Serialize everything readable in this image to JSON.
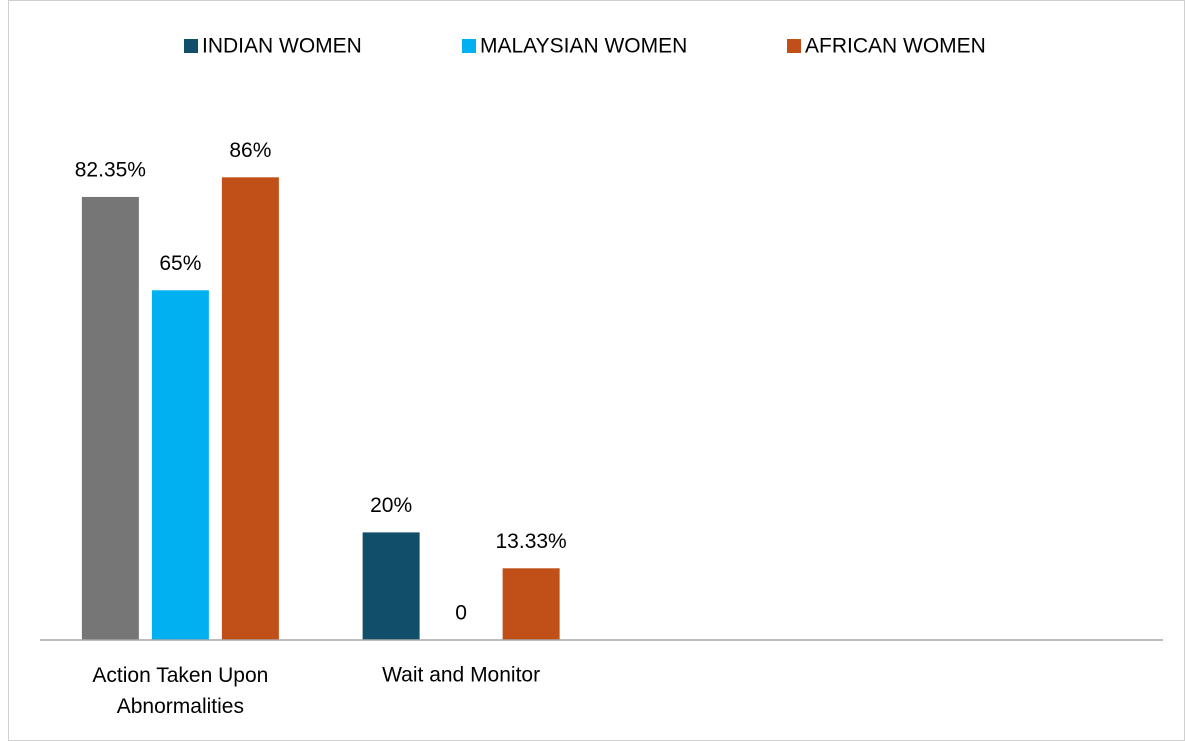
{
  "chart_data": {
    "type": "bar",
    "categories": [
      "Action Taken Upon Abnormalities",
      "Wait and Monitor",
      null,
      null
    ],
    "series": [
      {
        "name": "INDIAN WOMEN",
        "color": "#104e6a",
        "point_colors": [
          "#767676",
          "#104e6a",
          null,
          null
        ],
        "values": [
          82.35,
          20,
          null,
          null
        ],
        "value_labels": [
          "82.35%",
          "20%",
          null,
          null
        ]
      },
      {
        "name": "MALAYSIAN WOMEN",
        "color": "#00b0f0",
        "values": [
          65,
          0,
          null,
          null
        ],
        "value_labels": [
          "65%",
          "0",
          null,
          null
        ]
      },
      {
        "name": "AFRICAN WOMEN",
        "color": "#c05017",
        "values": [
          86,
          13.33,
          null,
          null
        ],
        "value_labels": [
          "86%",
          "13.33%",
          null,
          null
        ]
      }
    ],
    "ylim": [
      0,
      100
    ],
    "legend": "top"
  }
}
